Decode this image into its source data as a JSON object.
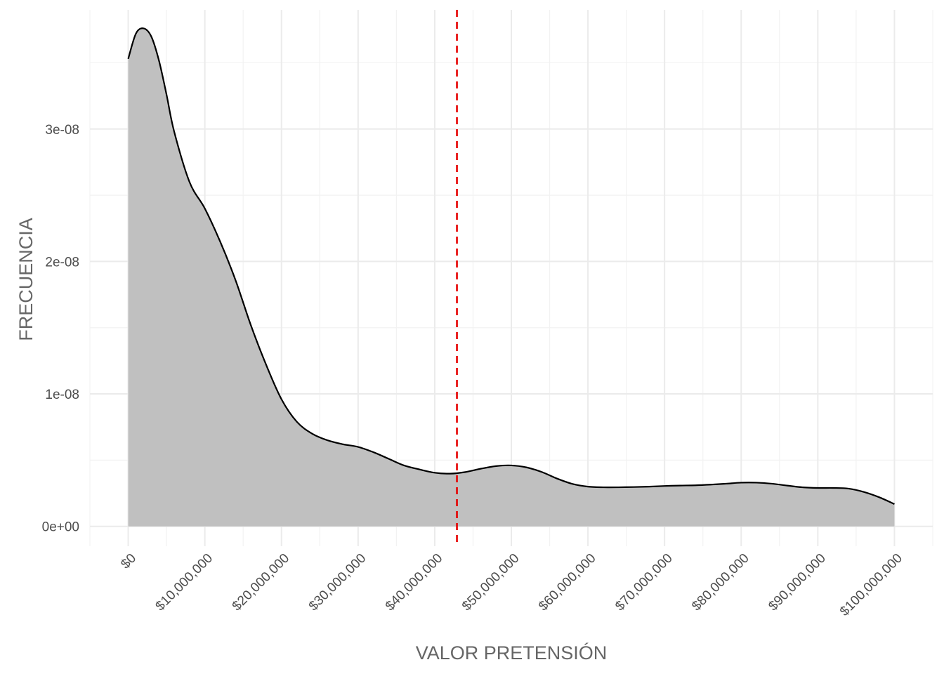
{
  "chart_data": {
    "type": "area",
    "xlabel": "VALOR PRETENSIÓN",
    "ylabel": "FRECUENCIA",
    "xlim": [
      -5000000,
      105000000
    ],
    "ylim": [
      -1.5e-09,
      3.9e-08
    ],
    "x_ticks": [
      0,
      10000000,
      20000000,
      30000000,
      40000000,
      50000000,
      60000000,
      70000000,
      80000000,
      90000000,
      100000000
    ],
    "x_tick_labels": [
      "$0",
      "$10,000,000",
      "$20,000,000",
      "$30,000,000",
      "$40,000,000",
      "$50,000,000",
      "$60,000,000",
      "$70,000,000",
      "$80,000,000",
      "$90,000,000",
      "$100,000,000"
    ],
    "y_ticks": [
      0,
      1e-08,
      2e-08,
      3e-08
    ],
    "y_tick_labels": [
      "0e+00",
      "1e-08",
      "2e-08",
      "3e-08"
    ],
    "grid": true,
    "fill_color": "#c0c0c0",
    "line_color": "#000000",
    "reference_line": {
      "x": 42900000,
      "color": "#e60000",
      "style": "dashed"
    },
    "series": [
      {
        "x": [
          0,
          1000000,
          2000000,
          3000000,
          4000000,
          5000000,
          6000000,
          8000000,
          10000000,
          12000000,
          14000000,
          16000000,
          18000000,
          20000000,
          22000000,
          24000000,
          26000000,
          28000000,
          30000000,
          32000000,
          34000000,
          36000000,
          38000000,
          40000000,
          42000000,
          44000000,
          46000000,
          48000000,
          50000000,
          52000000,
          54000000,
          56000000,
          58000000,
          60000000,
          62000000,
          64000000,
          66000000,
          68000000,
          70000000,
          72000000,
          74000000,
          76000000,
          78000000,
          80000000,
          82000000,
          84000000,
          86000000,
          88000000,
          90000000,
          92000000,
          94000000,
          96000000,
          98000000,
          100000000
        ],
        "y": [
          3.53e-08,
          3.72e-08,
          3.76e-08,
          3.7e-08,
          3.52e-08,
          3.26e-08,
          2.98e-08,
          2.6e-08,
          2.4e-08,
          2.15e-08,
          1.86e-08,
          1.52e-08,
          1.22e-08,
          9.6e-09,
          7.9e-09,
          7e-09,
          6.5e-09,
          6.2e-09,
          6e-09,
          5.6e-09,
          5.1e-09,
          4.6e-09,
          4.3e-09,
          4.05e-09,
          3.98e-09,
          4.1e-09,
          4.35e-09,
          4.55e-09,
          4.6e-09,
          4.45e-09,
          4.1e-09,
          3.6e-09,
          3.2e-09,
          3e-09,
          2.95e-09,
          2.95e-09,
          2.97e-09,
          3e-09,
          3.05e-09,
          3.08e-09,
          3.1e-09,
          3.15e-09,
          3.22e-09,
          3.3e-09,
          3.3e-09,
          3.22e-09,
          3.08e-09,
          2.95e-09,
          2.9e-09,
          2.9e-09,
          2.85e-09,
          2.6e-09,
          2.2e-09,
          1.68e-09
        ]
      }
    ]
  }
}
